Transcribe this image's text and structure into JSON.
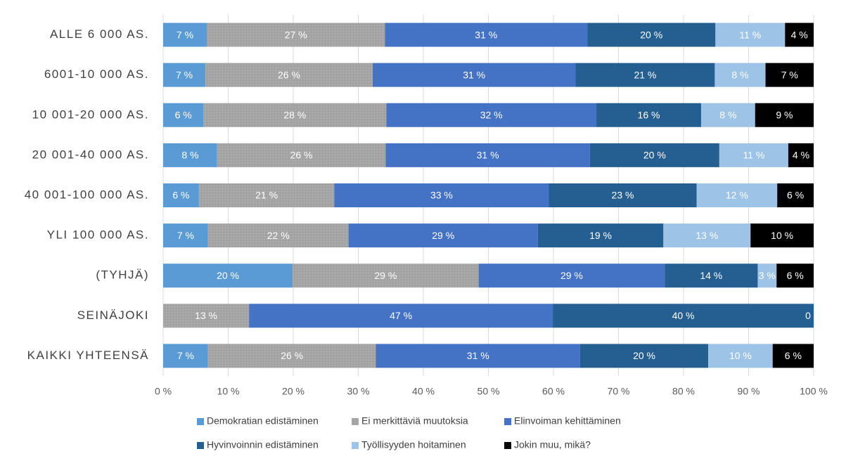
{
  "chart_data": {
    "type": "stacked-bar-horizontal",
    "categories": [
      "ALLE 6 000 AS.",
      "6001-10 000 AS.",
      "10 001-20 000 AS.",
      "20 001-40 000 AS.",
      "40 001-100 000 AS.",
      "YLI 100 000 AS.",
      "(TYHJÄ)",
      "SEINÄJOKI",
      "KAIKKI YHTEENSÄ"
    ],
    "series": [
      {
        "name": "Demokratian edistäminen",
        "color": "#5b9bd5",
        "values": [
          6.7,
          6.5,
          6.2,
          8.3,
          5.5,
          6.9,
          19.9,
          0,
          6.9
        ],
        "value_labels": [
          "7 %",
          "7 %",
          "6 %",
          "8 %",
          "6 %",
          "7 %",
          "20 %",
          "%",
          "7 %"
        ]
      },
      {
        "name": "Ei merkittäviä muutoksia",
        "color": "#a5a5a5",
        "values": [
          27.4,
          25.7,
          28.1,
          25.9,
          20.8,
          21.6,
          28.6,
          13.2,
          25.8
        ],
        "value_labels": [
          "27 %",
          "26 %",
          "28 %",
          "26 %",
          "21 %",
          "22 %",
          "29 %",
          "13 %",
          "26 %"
        ]
      },
      {
        "name": "Elinvoiman kehittäminen",
        "color": "#4472c4",
        "values": [
          31.1,
          31.2,
          32.3,
          31.4,
          33.0,
          29.1,
          28.6,
          46.7,
          31.4
        ],
        "value_labels": [
          "31 %",
          "31 %",
          "32 %",
          "31 %",
          "33 %",
          "29 %",
          "29 %",
          "47 %",
          "31 %"
        ]
      },
      {
        "name": "Hyvinvoinnin edistäminen",
        "color": "#255e91",
        "values": [
          19.7,
          21.4,
          16.1,
          19.9,
          22.7,
          19.3,
          14.3,
          40.1,
          19.7
        ],
        "value_labels": [
          "20 %",
          "21 %",
          "16 %",
          "20 %",
          "23 %",
          "19 %",
          "14 %",
          "40 %",
          "20 %"
        ]
      },
      {
        "name": "Työllisyyden hoitaminen",
        "color": "#9dc3e6",
        "values": [
          10.7,
          7.8,
          8.3,
          10.6,
          12.4,
          13.4,
          2.9,
          0,
          9.9
        ],
        "value_labels": [
          "11 %",
          "8 %",
          "8 %",
          "11 %",
          "12 %",
          "13 %",
          "3 %",
          "0",
          "10 %"
        ]
      },
      {
        "name": "Jokin muu, mikä?",
        "color": "#000000",
        "values": [
          4.4,
          7.4,
          9.0,
          3.9,
          5.6,
          9.7,
          5.7,
          0,
          6.3
        ],
        "value_labels": [
          "4 %",
          "7 %",
          "9 %",
          "4 %",
          "6 %",
          "10 %",
          "6 %",
          null,
          "6 %"
        ]
      }
    ],
    "xlim": [
      0,
      100
    ],
    "xticks": [
      {
        "value": 0,
        "label": "0 %"
      },
      {
        "value": 10,
        "label": "10 %"
      },
      {
        "value": 20,
        "label": "20 %"
      },
      {
        "value": 30,
        "label": "30 %"
      },
      {
        "value": 40,
        "label": "40 %"
      },
      {
        "value": 50,
        "label": "50 %"
      },
      {
        "value": 60,
        "label": "60 %"
      },
      {
        "value": 70,
        "label": "70 %"
      },
      {
        "value": 80,
        "label": "80 %"
      },
      {
        "value": 90,
        "label": "90 %"
      },
      {
        "value": 100,
        "label": "100 %"
      }
    ],
    "grid": true,
    "legend": "bottom"
  }
}
